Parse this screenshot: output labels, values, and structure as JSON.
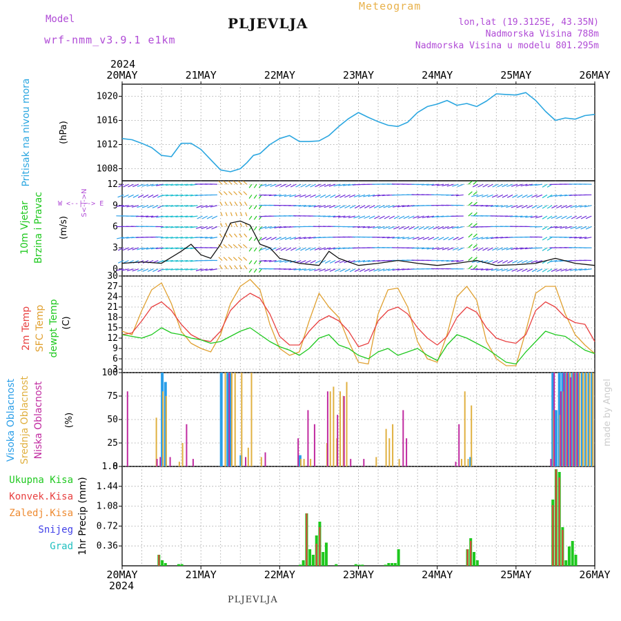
{
  "header": {
    "model_label": "Model",
    "model_name": "wrf-nmm_v3.9.1 e1km",
    "station_title": "PLJEVLJA",
    "meteogram_label": "Meteogram",
    "lonlat": "lon,lat (19.3125E, 43.35N)",
    "elevation": "Nadmorska Visina 788m",
    "model_elevation": "Nadmorska Visina u modelu 801.295m",
    "footer_title": "PLJEVLJA",
    "watermark": "made by Angel"
  },
  "colors": {
    "pressure": "#2aa6e0",
    "temp2m": "#e84040",
    "sfc_temp": "#e0a030",
    "dewpoint": "#1ec81e",
    "high_cloud": "#2a9ee8",
    "mid_cloud": "#e0b040",
    "low_cloud": "#c02aa0",
    "total_precip": "#1ec81e",
    "conv_precip": "#e84040",
    "frozen_precip": "#ee8a30",
    "snow": "#4040e8",
    "hail": "#20c0c0",
    "wind_speed": "#111111",
    "gust": "#e84040",
    "purple_text": "#b04bd6"
  },
  "chart_data": [
    {
      "type": "line",
      "panel": "pressure",
      "ylabel_left": "Pritisak na nivou mora",
      "units": "(hPa)",
      "year_label": "2024",
      "x_tick_labels": [
        "20MAY",
        "21MAY",
        "22MAY",
        "23MAY",
        "24MAY",
        "25MAY",
        "26MAY"
      ],
      "x_range": [
        0,
        144
      ],
      "ylim": [
        1006,
        1022
      ],
      "y_ticks": [
        1008,
        1012,
        1016,
        1020
      ],
      "grid": true,
      "series": [
        {
          "x": [
            0,
            3,
            6,
            9,
            12,
            15,
            18,
            21,
            24,
            27,
            30,
            33,
            36,
            38,
            40,
            42,
            45,
            48,
            51,
            54,
            57,
            60,
            63,
            66,
            69,
            72,
            75,
            78,
            81,
            84,
            87,
            90,
            93,
            96,
            99,
            102,
            105,
            108,
            111,
            114,
            117,
            120,
            123,
            126,
            129,
            132,
            135,
            138,
            141,
            144
          ],
          "y": [
            1013,
            1012.8,
            1012.2,
            1011.5,
            1010.2,
            1010,
            1012.2,
            1012.2,
            1011.2,
            1009.5,
            1007.8,
            1007.5,
            1008,
            1009,
            1010.2,
            1010.5,
            1012,
            1013,
            1013.5,
            1012.5,
            1012.5,
            1012.6,
            1013.5,
            1015,
            1016.3,
            1017.3,
            1016.5,
            1015.8,
            1015.2,
            1015,
            1015.7,
            1017.3,
            1018.3,
            1018.7,
            1019.3,
            1018.5,
            1018.8,
            1018.3,
            1019.2,
            1020.4,
            1020.3,
            1020.2,
            1020.6,
            1019.3,
            1017.5,
            1016,
            1016.4,
            1016.2,
            1016.8,
            1017
          ]
        }
      ]
    },
    {
      "type": "line",
      "panel": "wind",
      "ylabel_left": [
        "10m Vjetar",
        "Brzina i Pravac"
      ],
      "units": "(m/s)",
      "compass_label": "W <--|--> E",
      "compass_vertical": "S<-|->N",
      "ylim": [
        -1,
        12.5
      ],
      "y_ticks": [
        0,
        3,
        6,
        9,
        12
      ],
      "grid": true,
      "series": [
        {
          "name": "speed",
          "x": [
            0,
            6,
            12,
            18,
            21,
            24,
            27,
            30,
            33,
            36,
            39,
            42,
            45,
            48,
            54,
            60,
            63,
            66,
            72,
            78,
            84,
            90,
            96,
            102,
            108,
            114,
            120,
            126,
            132,
            138,
            144
          ],
          "y": [
            0.8,
            1.0,
            0.8,
            2.5,
            3.5,
            2.0,
            1.5,
            3.5,
            6.5,
            6.8,
            6.2,
            3.5,
            3.0,
            1.5,
            0.8,
            0.5,
            2.5,
            1.5,
            0.5,
            0.8,
            1.2,
            0.8,
            0.5,
            0.8,
            1.2,
            0.5,
            0.6,
            0.8,
            1.5,
            0.8,
            0.5
          ]
        }
      ]
    },
    {
      "type": "line",
      "panel": "temperature",
      "ylabel_left": [
        "2m Temp",
        "SFC Temp",
        "dewpt Temp"
      ],
      "units": "(C)",
      "ylim": [
        2,
        30
      ],
      "y_ticks": [
        3,
        6,
        9,
        12,
        15,
        18,
        21,
        24,
        27,
        30
      ],
      "grid": true,
      "series": [
        {
          "name": "2m Temp",
          "x": [
            0,
            3,
            6,
            9,
            12,
            15,
            18,
            21,
            24,
            27,
            30,
            33,
            36,
            39,
            42,
            45,
            48,
            51,
            54,
            57,
            60,
            63,
            66,
            69,
            72,
            75,
            78,
            81,
            84,
            87,
            90,
            93,
            96,
            99,
            102,
            105,
            108,
            111,
            114,
            117,
            120,
            123,
            126,
            129,
            132,
            135,
            138,
            141,
            144
          ],
          "y": [
            13,
            13.5,
            17,
            21,
            22.5,
            20,
            16,
            13,
            11.5,
            11,
            14,
            20,
            23,
            25,
            23.5,
            19,
            12.5,
            10,
            10,
            14,
            17,
            18.5,
            17,
            14,
            9.5,
            10.5,
            17,
            20,
            21,
            19,
            15,
            12,
            10,
            12.5,
            18,
            21,
            19.5,
            15,
            12,
            11,
            10.5,
            13,
            20,
            22.5,
            21,
            18,
            16.5,
            16,
            11
          ]
        },
        {
          "name": "SFC Temp",
          "x": [
            0,
            3,
            6,
            9,
            12,
            15,
            18,
            21,
            24,
            27,
            30,
            33,
            36,
            39,
            42,
            45,
            48,
            51,
            54,
            57,
            60,
            63,
            66,
            69,
            72,
            75,
            78,
            81,
            84,
            87,
            90,
            93,
            96,
            99,
            102,
            105,
            108,
            111,
            114,
            117,
            120,
            123,
            126,
            129,
            132,
            135,
            138,
            141,
            144
          ],
          "y": [
            14,
            13,
            20,
            26,
            28,
            22,
            14,
            10.5,
            9,
            8,
            13,
            22,
            27,
            29,
            26,
            16,
            9,
            7,
            8,
            17,
            25,
            21,
            18,
            11,
            5,
            4.5,
            19,
            26,
            26.5,
            21,
            11,
            6,
            5,
            13,
            24,
            27,
            23,
            11,
            6,
            4,
            4,
            14,
            25,
            27,
            27,
            19,
            13,
            10,
            7.5
          ]
        },
        {
          "name": "dewpt Temp",
          "x": [
            0,
            3,
            6,
            9,
            12,
            15,
            18,
            21,
            24,
            27,
            30,
            33,
            36,
            39,
            42,
            45,
            48,
            51,
            54,
            57,
            60,
            63,
            66,
            69,
            72,
            75,
            78,
            81,
            84,
            87,
            90,
            93,
            96,
            99,
            102,
            105,
            108,
            111,
            114,
            117,
            120,
            123,
            126,
            129,
            132,
            135,
            138,
            141,
            144
          ],
          "y": [
            13,
            12.5,
            12,
            13,
            15,
            13.5,
            13,
            12,
            11.5,
            10.5,
            11,
            12.5,
            14,
            15,
            13,
            11,
            9.5,
            8.5,
            7,
            9,
            12,
            13,
            10,
            9,
            7,
            6,
            8,
            9,
            7,
            8,
            9,
            7,
            5.5,
            10,
            13,
            12,
            10.5,
            9,
            7,
            5,
            4.5,
            8,
            11,
            14,
            13,
            12.5,
            10.5,
            8.5,
            7.5
          ]
        }
      ]
    },
    {
      "type": "bar",
      "panel": "cloud",
      "ylabel_left": [
        "Visoka Oblacnost",
        "Srednja Oblacnost",
        "Niska Oblacnost"
      ],
      "units": "(%)",
      "ylim": [
        0,
        100
      ],
      "y_ticks": [
        0,
        25,
        50,
        75,
        100
      ],
      "grid": true,
      "series": [
        {
          "name": "Visoka Oblacnost",
          "x": [
            12,
            13,
            30,
            32,
            33,
            36,
            54,
            106,
            131,
            132,
            133,
            134,
            135,
            136,
            137,
            138,
            139,
            140,
            141,
            142,
            143
          ],
          "y": [
            100,
            90,
            100,
            100,
            100,
            12,
            12,
            10,
            100,
            60,
            100,
            100,
            100,
            100,
            100,
            100,
            100,
            100,
            100,
            100,
            100
          ]
        },
        {
          "name": "Srednja Oblacnost",
          "x": [
            10,
            12,
            13,
            17,
            18,
            31,
            33,
            34,
            36,
            38,
            39,
            42,
            54,
            55,
            57,
            62,
            63,
            64,
            65,
            66,
            67,
            68,
            77,
            80,
            81,
            82,
            84,
            103,
            104,
            105,
            106,
            131,
            133,
            134,
            135,
            136,
            137,
            138,
            139,
            140,
            141,
            142,
            143
          ],
          "y": [
            52,
            80,
            75,
            5,
            25,
            100,
            100,
            100,
            100,
            20,
            100,
            10,
            8,
            8,
            8,
            25,
            80,
            85,
            30,
            80,
            75,
            90,
            10,
            40,
            30,
            45,
            8,
            8,
            80,
            8,
            65,
            60,
            55,
            80,
            100,
            100,
            100,
            100,
            100,
            100,
            100,
            100,
            100
          ]
        },
        {
          "name": "Niska Oblacnost",
          "x": [
            1,
            10,
            11,
            14,
            19,
            21,
            32,
            37,
            43,
            53,
            56,
            58,
            62,
            65,
            67,
            69,
            73,
            85,
            86,
            101,
            102,
            130,
            131,
            133,
            134,
            135,
            136,
            137,
            138
          ],
          "y": [
            80,
            8,
            10,
            10,
            45,
            8,
            100,
            10,
            15,
            30,
            60,
            45,
            80,
            55,
            75,
            8,
            8,
            60,
            30,
            5,
            45,
            8,
            100,
            80,
            100,
            100,
            95,
            100,
            100
          ]
        }
      ]
    },
    {
      "type": "bar",
      "panel": "precipitation",
      "ylabel_left": "1hr Precip (mm)",
      "legend": [
        "Ukupna Kisa",
        "Konvek.Kisa",
        "Zaledj.Kisa",
        "Snijeg",
        "Grad"
      ],
      "ylim": [
        0,
        1.8
      ],
      "y_ticks": [
        0.36,
        0.72,
        1.08,
        1.44,
        1.8
      ],
      "grid": true,
      "series": [
        {
          "name": "Ukupna Kisa",
          "x": [
            11,
            12,
            13,
            17,
            18,
            54,
            55,
            56,
            57,
            58,
            59,
            60,
            61,
            62,
            65,
            71,
            72,
            73,
            80,
            81,
            82,
            83,
            84,
            105,
            106,
            107,
            108,
            131,
            132,
            133,
            134,
            135,
            136,
            137,
            138
          ],
          "y": [
            0.2,
            0.1,
            0.05,
            0.03,
            0.03,
            0.02,
            0.1,
            0.95,
            0.3,
            0.2,
            0.55,
            0.8,
            0.25,
            0.42,
            0.03,
            0.03,
            0.02,
            0.02,
            0.02,
            0.05,
            0.05,
            0.05,
            0.3,
            0.3,
            0.5,
            0.25,
            0.1,
            1.2,
            1.75,
            1.7,
            0.7,
            0.1,
            0.35,
            0.45,
            0.2
          ]
        },
        {
          "name": "Konvek.Kisa",
          "x": [
            11,
            56,
            59,
            60,
            105,
            106,
            131,
            132,
            133,
            134
          ],
          "y": [
            0.2,
            0.95,
            0.4,
            0.7,
            0.3,
            0.45,
            1.1,
            1.75,
            1.6,
            0.65
          ]
        }
      ]
    }
  ]
}
